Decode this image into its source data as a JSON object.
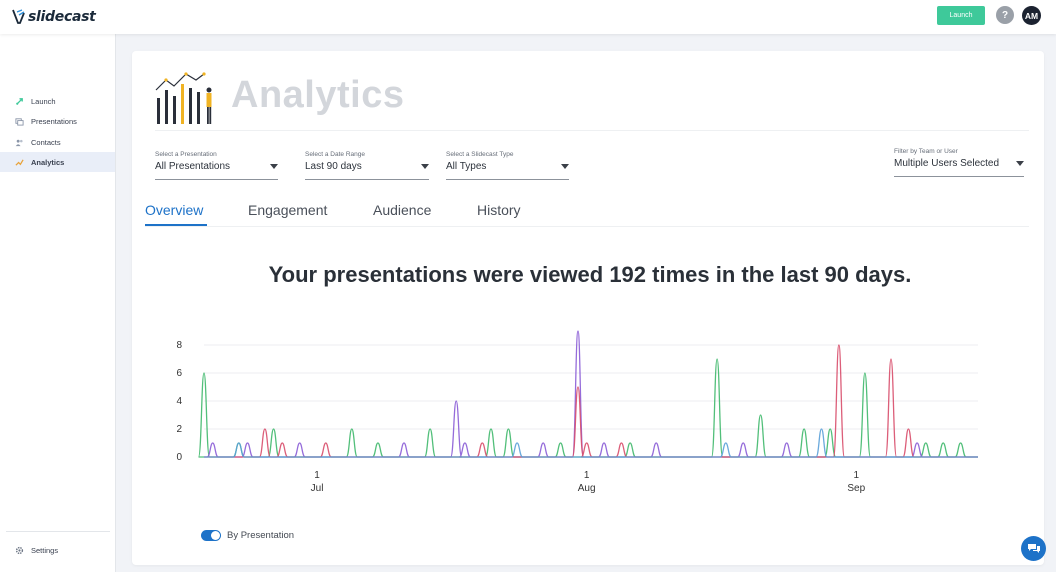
{
  "app": {
    "logo_text": "slidecast"
  },
  "topbar": {
    "launch_label": "Launch",
    "help_label": "?",
    "avatar_initials": "AM"
  },
  "sidebar": {
    "items": [
      {
        "label": "Launch",
        "icon": "rocket-icon"
      },
      {
        "label": "Presentations",
        "icon": "slides-icon"
      },
      {
        "label": "Contacts",
        "icon": "contacts-icon"
      },
      {
        "label": "Analytics",
        "icon": "chart-icon",
        "active": true
      }
    ],
    "settings_label": "Settings"
  },
  "page": {
    "title": "Analytics"
  },
  "filters": [
    {
      "label": "Select a Presentation",
      "value": "All Presentations"
    },
    {
      "label": "Select a Date Range",
      "value": "Last 90 days"
    },
    {
      "label": "Select a Slidecast Type",
      "value": "All Types"
    },
    {
      "label": "Filter by Team or User",
      "value": "Multiple Users Selected"
    }
  ],
  "tabs": [
    {
      "label": "Overview",
      "active": true
    },
    {
      "label": "Engagement"
    },
    {
      "label": "Audience"
    },
    {
      "label": "History"
    }
  ],
  "headline": "Your presentations were viewed 192 times in the last 90 days.",
  "toggle": {
    "label": "By Presentation",
    "on": true
  },
  "colors": {
    "accent": "#1d72c8",
    "launch": "#3ec99a"
  },
  "chart_data": {
    "type": "line",
    "x_range": [
      "2024-06-18",
      "2024-09-15"
    ],
    "ylim": [
      0,
      9
    ],
    "y_ticks": [
      0,
      2,
      4,
      6,
      8
    ],
    "x_ticks": [
      {
        "date": "2024-07-01",
        "day": "1",
        "month": "Jul"
      },
      {
        "date": "2024-08-01",
        "day": "1",
        "month": "Aug"
      },
      {
        "date": "2024-09-01",
        "day": "1",
        "month": "Sep"
      }
    ],
    "grid": true,
    "series": [
      {
        "color": "#3fb86b",
        "peaks": [
          [
            "2024-06-18",
            6
          ],
          [
            "2024-06-22",
            1
          ],
          [
            "2024-06-26",
            2
          ],
          [
            "2024-07-05",
            2
          ],
          [
            "2024-07-08",
            1
          ],
          [
            "2024-07-14",
            2
          ],
          [
            "2024-07-21",
            2
          ],
          [
            "2024-07-23",
            2
          ],
          [
            "2024-07-29",
            1
          ],
          [
            "2024-08-06",
            1
          ],
          [
            "2024-08-16",
            7
          ],
          [
            "2024-08-21",
            3
          ],
          [
            "2024-08-26",
            2
          ],
          [
            "2024-08-29",
            2
          ],
          [
            "2024-09-02",
            6
          ],
          [
            "2024-09-09",
            1
          ],
          [
            "2024-09-11",
            1
          ],
          [
            "2024-09-13",
            1
          ]
        ]
      },
      {
        "color": "#8a5cd6",
        "peaks": [
          [
            "2024-06-19",
            1
          ],
          [
            "2024-06-23",
            1
          ],
          [
            "2024-06-29",
            1
          ],
          [
            "2024-07-11",
            1
          ],
          [
            "2024-07-17",
            4
          ],
          [
            "2024-07-18",
            1
          ],
          [
            "2024-07-27",
            1
          ],
          [
            "2024-07-31",
            9
          ],
          [
            "2024-08-03",
            1
          ],
          [
            "2024-08-09",
            1
          ],
          [
            "2024-08-19",
            1
          ],
          [
            "2024-08-24",
            1
          ],
          [
            "2024-09-08",
            1
          ]
        ]
      },
      {
        "color": "#d84d6a",
        "peaks": [
          [
            "2024-06-25",
            2
          ],
          [
            "2024-06-27",
            1
          ],
          [
            "2024-07-02",
            1
          ],
          [
            "2024-07-20",
            1
          ],
          [
            "2024-07-31",
            5
          ],
          [
            "2024-08-01",
            1
          ],
          [
            "2024-08-05",
            1
          ],
          [
            "2024-08-30",
            8
          ],
          [
            "2024-09-05",
            7
          ],
          [
            "2024-09-07",
            2
          ]
        ]
      },
      {
        "color": "#5aa0d8",
        "peaks": [
          [
            "2024-06-22",
            1
          ],
          [
            "2024-07-24",
            1
          ],
          [
            "2024-08-17",
            1
          ],
          [
            "2024-08-28",
            2
          ]
        ]
      }
    ]
  }
}
